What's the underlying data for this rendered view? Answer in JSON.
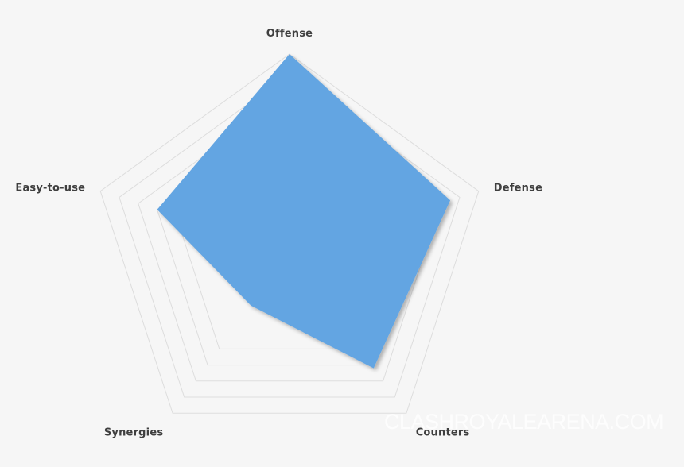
{
  "chart_data": {
    "type": "radar",
    "axes": [
      "Offense",
      "Defense",
      "Counters",
      "Synergies",
      "Easy-to-use"
    ],
    "values": [
      10,
      8.5,
      7.2,
      3.3,
      7
    ],
    "range": [
      0,
      10
    ],
    "grid_levels": [
      6,
      7,
      8,
      9,
      10
    ],
    "grid": true,
    "legend": "none"
  },
  "watermark": "CLASHROYALEARENA.COM",
  "colors": {
    "fill": "#64a5e2",
    "grid": "#dddddd",
    "background": "#f6f6f6",
    "label": "#3f3f3f"
  }
}
